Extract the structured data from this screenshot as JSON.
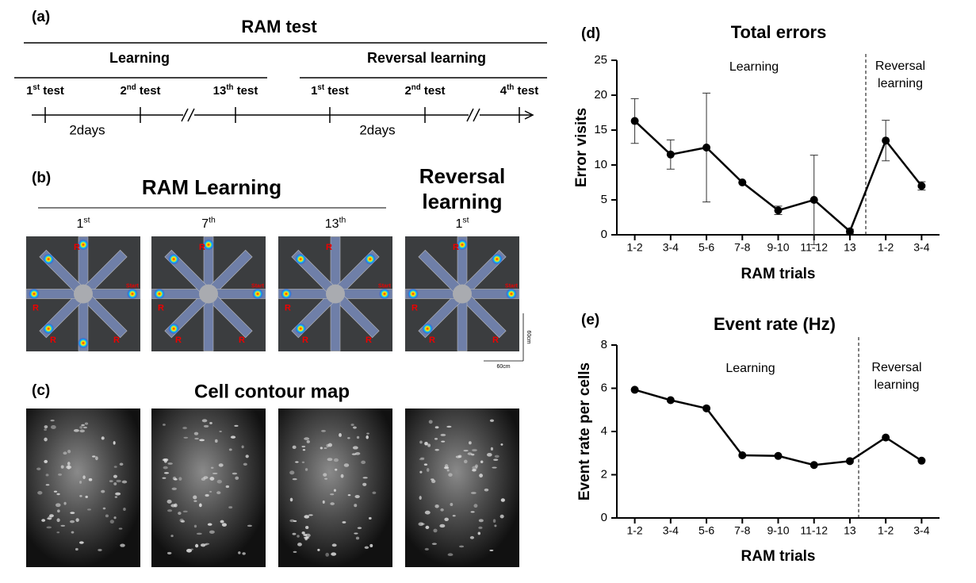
{
  "panel_labels": [
    "(a)",
    "(b)",
    "(c)",
    "(d)",
    "(e)"
  ],
  "timeline": {
    "title": "RAM test",
    "phases": [
      "Learning",
      "Reversal learning"
    ],
    "tests": [
      {
        "number": "1",
        "suffix": "st",
        "word": "test"
      },
      {
        "number": "2",
        "suffix": "nd",
        "word": "test"
      },
      {
        "number": "13",
        "suffix": "th",
        "word": "test"
      },
      {
        "number": "1",
        "suffix": "st",
        "word": "test"
      },
      {
        "number": "2",
        "suffix": "nd",
        "word": "test"
      },
      {
        "number": "4",
        "suffix": "th",
        "word": "test"
      }
    ],
    "interval": "2days"
  },
  "ram_images": {
    "title": "RAM Learning",
    "reversal_title": [
      "Reversal",
      "learning"
    ],
    "columns": [
      {
        "number": "1",
        "suffix": "st"
      },
      {
        "number": "7",
        "suffix": "th"
      },
      {
        "number": "13",
        "suffix": "th"
      },
      {
        "number": "1",
        "suffix": "st"
      }
    ],
    "arm_label": "R",
    "start_label": "Start",
    "scale": "60cm"
  },
  "contour_maps": {
    "title": "Cell contour map"
  },
  "chart_data": [
    {
      "type": "line",
      "title": "Total errors",
      "xlabel": "RAM trials",
      "ylabel": "Error visits",
      "categories": [
        "1-2",
        "3-4",
        "5-6",
        "7-8",
        "9-10",
        "11-12",
        "13",
        "1-2",
        "3-4"
      ],
      "values": [
        16.3,
        11.5,
        12.5,
        7.5,
        3.5,
        5.0,
        0.5,
        13.5,
        7.0
      ],
      "errors": [
        3.2,
        2.1,
        7.8,
        0,
        0.6,
        6.4,
        0.3,
        2.9,
        0.6
      ],
      "color": "#000000",
      "ylim": [
        0,
        25
      ],
      "yticks": [
        0,
        5,
        10,
        15,
        20,
        25
      ],
      "annotations": {
        "left": "Learning",
        "right": [
          "Reversal",
          "learning"
        ]
      }
    },
    {
      "type": "line",
      "title": "Event rate (Hz)",
      "xlabel": "RAM trials",
      "ylabel": "Event rate per cells",
      "categories": [
        "1-2",
        "3-4",
        "5-6",
        "7-8",
        "9-10",
        "11-12",
        "13",
        "1-2",
        "3-4"
      ],
      "values": [
        5.93,
        5.45,
        5.07,
        2.9,
        2.87,
        2.45,
        2.63,
        3.72,
        2.65
      ],
      "color": "#000000",
      "ylim": [
        0,
        8
      ],
      "yticks": [
        0,
        2,
        4,
        6,
        8
      ],
      "annotations": {
        "left": "Learning",
        "right": [
          "Reversal",
          "learning"
        ]
      }
    }
  ]
}
